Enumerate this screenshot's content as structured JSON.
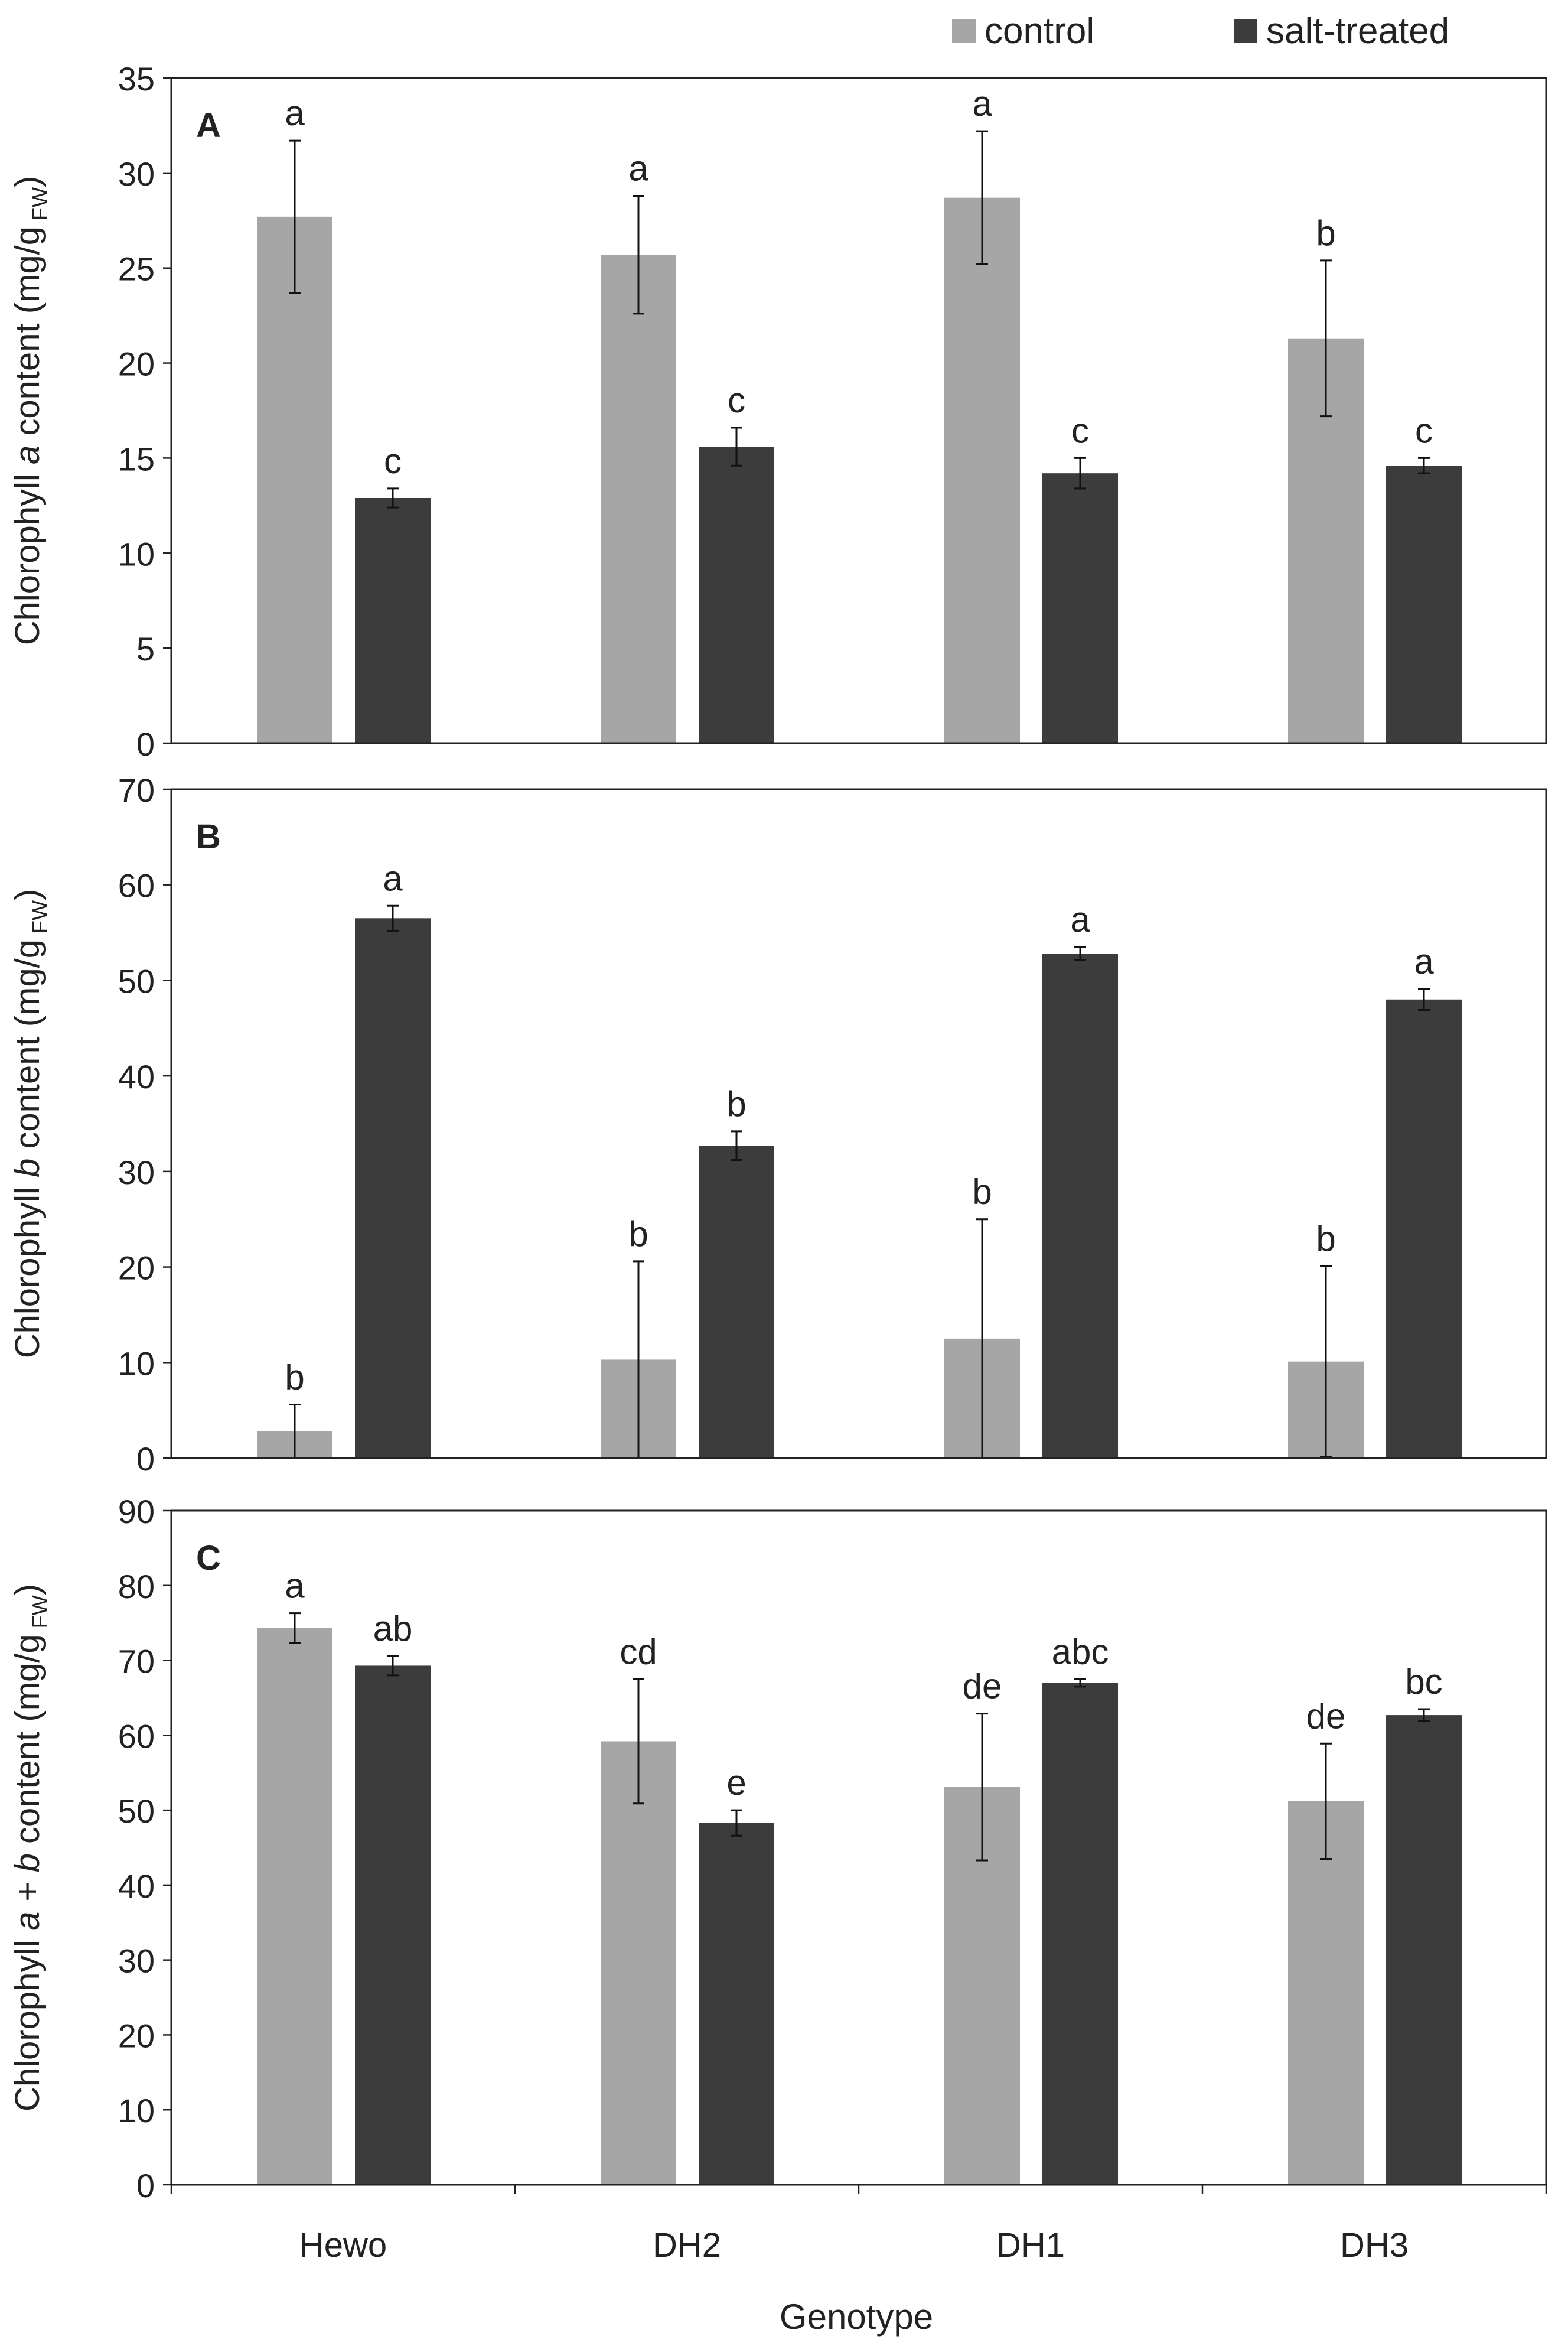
{
  "colors": {
    "control": "#a6a6a6",
    "salt": "#3c3c3c",
    "axis": "#222222"
  },
  "legend": [
    {
      "label": "control",
      "color": "#a6a6a6"
    },
    {
      "label": "salt-treated",
      "color": "#3c3c3c"
    }
  ],
  "xlabel": "Genotype",
  "categories": [
    "Hewo",
    "DH2",
    "DH1",
    "DH3"
  ],
  "chart_data": [
    {
      "type": "bar",
      "panel": "A",
      "ylabel_pre": "Chlorophyll ",
      "ylabel_var": "a",
      "ylabel_post": " content (mg/g",
      "ylabel_sub": "FW",
      "ylabel_close": ")",
      "ylim": [
        0,
        35
      ],
      "yticks": [
        "0",
        "5",
        "10",
        "15",
        "20",
        "25",
        "30",
        "35"
      ],
      "tickstep": 5,
      "categories": [
        "Hewo",
        "DH2",
        "DH1",
        "DH3"
      ],
      "series": [
        {
          "name": "control",
          "values": [
            27.7,
            25.7,
            28.7,
            21.3
          ],
          "errors": [
            4.0,
            3.1,
            3.5,
            4.1
          ],
          "letters": [
            "a",
            "a",
            "a",
            "b"
          ]
        },
        {
          "name": "salt-treated",
          "values": [
            12.9,
            15.6,
            14.2,
            14.6
          ],
          "errors": [
            0.5,
            1.0,
            0.8,
            0.4
          ],
          "letters": [
            "c",
            "c",
            "c",
            "c"
          ]
        }
      ]
    },
    {
      "type": "bar",
      "panel": "B",
      "ylabel_pre": "Chlorophyll ",
      "ylabel_var": "b",
      "ylabel_post": " content (mg/g",
      "ylabel_sub": "FW",
      "ylabel_close": ")",
      "ylim": [
        0,
        70
      ],
      "yticks": [
        "0",
        "10",
        "20",
        "30",
        "40",
        "50",
        "60",
        "70"
      ],
      "tickstep": 10,
      "categories": [
        "Hewo",
        "DH2",
        "DH1",
        "DH3"
      ],
      "series": [
        {
          "name": "control",
          "values": [
            2.8,
            10.3,
            12.5,
            10.1
          ],
          "errors": [
            2.8,
            10.3,
            12.5,
            10.0
          ],
          "letters": [
            "b",
            "b",
            "b",
            "b"
          ]
        },
        {
          "name": "salt-treated",
          "values": [
            56.5,
            32.7,
            52.8,
            48.0
          ],
          "errors": [
            1.3,
            1.5,
            0.7,
            1.1
          ],
          "letters": [
            "a",
            "b",
            "a",
            "a"
          ]
        }
      ]
    },
    {
      "type": "bar",
      "panel": "C",
      "ylabel_pre": "Chlorophyll ",
      "ylabel_var": "a + b",
      "ylabel_post": " content (mg/g",
      "ylabel_sub": "FW",
      "ylabel_close": ")",
      "ylim": [
        0,
        90
      ],
      "yticks": [
        "0",
        "10",
        "20",
        "30",
        "40",
        "50",
        "60",
        "70",
        "80",
        "90"
      ],
      "tickstep": 10,
      "categories": [
        "Hewo",
        "DH2",
        "DH1",
        "DH3"
      ],
      "series": [
        {
          "name": "control",
          "values": [
            74.3,
            59.2,
            53.1,
            51.2
          ],
          "errors": [
            2.0,
            8.3,
            9.8,
            7.7
          ],
          "letters": [
            "a",
            "cd",
            "de",
            "de"
          ]
        },
        {
          "name": "salt-treated",
          "values": [
            69.3,
            48.3,
            67.0,
            62.7
          ],
          "errors": [
            1.3,
            1.7,
            0.5,
            0.8
          ],
          "letters": [
            "ab",
            "e",
            "abc",
            "bc"
          ]
        }
      ]
    }
  ]
}
